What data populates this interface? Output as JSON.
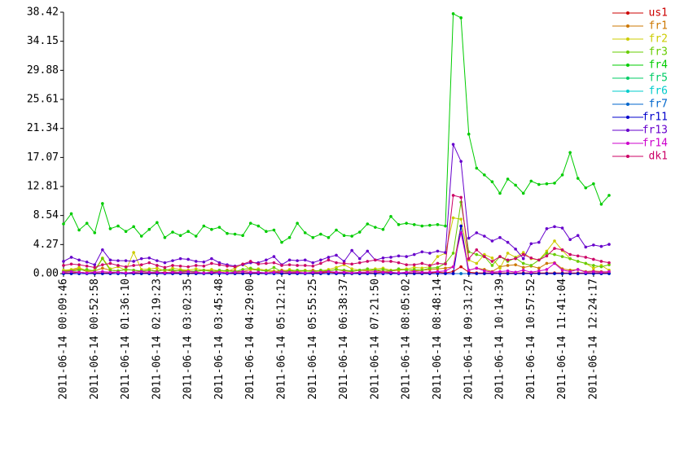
{
  "chart_data": {
    "type": "line",
    "x": [
      "2011-06-14 00:09:46",
      "2011-06-14 00:20:34",
      "2011-06-14 00:31:22",
      "2011-06-14 00:42:10",
      "2011-06-14 00:52:58",
      "2011-06-14 01:03:46",
      "2011-06-14 01:14:34",
      "2011-06-14 01:25:22",
      "2011-06-14 01:36:10",
      "2011-06-14 01:46:58",
      "2011-06-14 01:57:46",
      "2011-06-14 02:08:34",
      "2011-06-14 02:19:22",
      "2011-06-14 02:30:10",
      "2011-06-14 02:40:58",
      "2011-06-14 02:51:46",
      "2011-06-14 03:02:34",
      "2011-06-14 03:13:22",
      "2011-06-14 03:24:10",
      "2011-06-14 03:34:58",
      "2011-06-14 03:45:46",
      "2011-06-14 03:56:34",
      "2011-06-14 04:07:22",
      "2011-06-14 04:18:10",
      "2011-06-14 04:28:58",
      "2011-06-14 04:39:46",
      "2011-06-14 04:50:34",
      "2011-06-14 05:01:22",
      "2011-06-14 05:12:10",
      "2011-06-14 05:22:58",
      "2011-06-14 05:33:46",
      "2011-06-14 05:44:34",
      "2011-06-14 05:55:22",
      "2011-06-14 06:06:10",
      "2011-06-14 06:16:58",
      "2011-06-14 06:27:46",
      "2011-06-14 06:38:34",
      "2011-06-14 06:49:22",
      "2011-06-14 07:00:10",
      "2011-06-14 07:10:58",
      "2011-06-14 07:21:46",
      "2011-06-14 07:32:34",
      "2011-06-14 07:43:22",
      "2011-06-14 07:54:10",
      "2011-06-14 08:04:58",
      "2011-06-14 08:15:46",
      "2011-06-14 08:26:34",
      "2011-06-14 08:37:22",
      "2011-06-14 08:48:10",
      "2011-06-14 08:58:58",
      "2011-06-14 09:09:46",
      "2011-06-14 09:20:34",
      "2011-06-14 09:31:22",
      "2011-06-14 09:42:10",
      "2011-06-14 09:52:58",
      "2011-06-14 10:03:46",
      "2011-06-14 10:14:34",
      "2011-06-14 10:25:22",
      "2011-06-14 10:36:10",
      "2011-06-14 10:46:58",
      "2011-06-14 10:57:46",
      "2011-06-14 11:08:34",
      "2011-06-14 11:19:22",
      "2011-06-14 11:30:10",
      "2011-06-14 11:40:58",
      "2011-06-14 11:51:46",
      "2011-06-14 12:02:34",
      "2011-06-14 12:13:22",
      "2011-06-14 12:24:10",
      "2011-06-14 12:34:58",
      "2011-06-14 12:45:46"
    ],
    "xlim": [
      "2011-06-14 00:09:46",
      "2011-06-14 12:45:46"
    ],
    "xticks": [
      "2011-06-14 00:09:46",
      "2011-06-14 00:52:58",
      "2011-06-14 01:36:10",
      "2011-06-14 02:19:23",
      "2011-06-14 03:02:35",
      "2011-06-14 03:45:48",
      "2011-06-14 04:29:00",
      "2011-06-14 05:12:12",
      "2011-06-14 05:55:25",
      "2011-06-14 06:38:37",
      "2011-06-14 07:21:50",
      "2011-06-14 08:05:02",
      "2011-06-14 08:48:14",
      "2011-06-14 09:31:27",
      "2011-06-14 10:14:39",
      "2011-06-14 10:57:52",
      "2011-06-14 11:41:04",
      "2011-06-14 12:24:17"
    ],
    "ylim": [
      0,
      38.42
    ],
    "yticks": [
      {
        "value": 0,
        "label": "0.00"
      },
      4.27,
      8.54,
      12.81,
      17.07,
      21.34,
      25.61,
      29.88,
      34.15,
      38.42
    ],
    "legend": "right",
    "series": [
      {
        "name": "us1",
        "color": "#cc0000",
        "values": [
          0.1,
          0.1,
          0.2,
          0.1,
          0.1,
          0.1,
          0.1,
          0.2,
          0.1,
          0.1,
          0.1,
          0.1,
          0.1,
          0.2,
          0.1,
          0.1,
          0.1,
          0.1,
          0.1,
          0.1,
          0.2,
          0.1,
          0.1,
          0.1,
          0.1,
          0.1,
          0.1,
          0.2,
          0.1,
          0.1,
          0.1,
          0.1,
          0.1,
          0.1,
          0.2,
          0.1,
          0.1,
          0.1,
          0.1,
          0.1,
          0.1,
          0.2,
          0.1,
          0.1,
          0.1,
          0.1,
          0.1,
          0.1,
          0.2,
          0.1,
          0.3,
          1.0,
          0.2,
          0.1,
          0.1,
          0.1,
          0.1,
          0.1,
          0.1,
          0.1,
          0.1,
          0.1,
          0.1,
          0.1,
          0.1,
          0.1,
          0.1,
          0.1,
          0.1,
          0.1,
          0.1
        ]
      },
      {
        "name": "fr1",
        "color": "#cc7700",
        "values": [
          0.4,
          0.5,
          0.7,
          0.3,
          0.4,
          0.8,
          0.5,
          0.4,
          0.6,
          0.5,
          0.3,
          0.5,
          0.4,
          0.6,
          0.3,
          0.5,
          0.4,
          0.3,
          0.5,
          0.4,
          0.3,
          0.5,
          0.4,
          0.3,
          0.6,
          0.5,
          0.4,
          0.3,
          0.5,
          0.4,
          0.3,
          0.4,
          0.5,
          0.3,
          0.4,
          0.6,
          0.4,
          0.3,
          0.5,
          0.4,
          0.5,
          0.3,
          0.4,
          0.5,
          0.6,
          0.4,
          0.5,
          0.6,
          0.7,
          0.8,
          1.0,
          7.0,
          0.5,
          0.8,
          0.6,
          0.3,
          1.0,
          1.2,
          1.3,
          0.9,
          1.1,
          0.8,
          1.5,
          1.6,
          0.7,
          0.5,
          0.6,
          0.3,
          0.4,
          0.3,
          0.2
        ]
      },
      {
        "name": "fr2",
        "color": "#cccc00",
        "values": [
          0.5,
          0.6,
          0.9,
          0.4,
          0.5,
          2.3,
          0.7,
          1.0,
          0.5,
          3.1,
          0.6,
          0.7,
          0.8,
          0.4,
          0.8,
          0.6,
          0.5,
          0.7,
          0.5,
          0.6,
          0.4,
          0.3,
          0.8,
          1.4,
          0.6,
          0.7,
          0.5,
          0.4,
          0.3,
          0.6,
          0.4,
          0.5,
          0.3,
          0.4,
          0.6,
          0.9,
          1.3,
          0.7,
          0.5,
          0.6,
          0.7,
          0.8,
          0.5,
          0.6,
          0.7,
          0.9,
          0.8,
          1.0,
          2.5,
          3.0,
          8.2,
          8.0,
          2.0,
          1.5,
          2.8,
          2.3,
          0.8,
          3.0,
          2.4,
          3.1,
          2.2,
          2.0,
          3.3,
          4.8,
          3.4,
          2.2,
          1.8,
          1.5,
          0.8,
          1.2,
          0.5
        ]
      },
      {
        "name": "fr3",
        "color": "#66cc00",
        "values": [
          0.3,
          0.4,
          0.5,
          0.6,
          0.4,
          2.2,
          0.5,
          0.4,
          0.6,
          0.5,
          0.4,
          0.5,
          0.3,
          0.6,
          0.5,
          0.4,
          0.3,
          0.4,
          0.5,
          0.3,
          0.5,
          0.4,
          0.3,
          0.6,
          0.8,
          0.5,
          0.4,
          0.9,
          0.3,
          0.4,
          0.5,
          0.4,
          0.3,
          0.5,
          0.4,
          0.6,
          0.5,
          0.4,
          0.5,
          0.7,
          0.5,
          0.6,
          0.4,
          0.7,
          0.5,
          0.6,
          0.5,
          0.8,
          0.9,
          1.5,
          3.0,
          10.5,
          3.2,
          2.8,
          2.5,
          1.2,
          2.5,
          1.8,
          2.3,
          1.5,
          1.2,
          2.0,
          3.0,
          2.8,
          2.5,
          2.2,
          1.8,
          1.5,
          1.2,
          1.0,
          1.3
        ]
      },
      {
        "name": "fr4",
        "color": "#00cc00",
        "values": [
          7.3,
          8.8,
          6.4,
          7.4,
          6.0,
          10.3,
          6.6,
          7.0,
          6.2,
          6.9,
          5.5,
          6.5,
          7.5,
          5.3,
          6.1,
          5.6,
          6.2,
          5.5,
          7.0,
          6.5,
          6.8,
          5.9,
          5.8,
          5.6,
          7.4,
          7.0,
          6.2,
          6.4,
          4.6,
          5.3,
          7.4,
          6.0,
          5.3,
          5.8,
          5.3,
          6.4,
          5.6,
          5.5,
          6.1,
          7.3,
          6.8,
          6.5,
          8.4,
          7.2,
          7.4,
          7.2,
          7.0,
          7.1,
          7.2,
          7.0,
          38.2,
          37.6,
          20.5,
          15.5,
          14.5,
          13.5,
          11.8,
          13.9,
          13.0,
          11.8,
          13.6,
          13.1,
          13.2,
          13.3,
          14.5,
          17.8,
          14.0,
          12.6,
          13.2,
          10.2,
          11.5
        ]
      },
      {
        "name": "fr5",
        "color": "#00cc66",
        "values": [
          0,
          0,
          0,
          0,
          0,
          0,
          0,
          0,
          0,
          0,
          0,
          0,
          0,
          0,
          0,
          0,
          0,
          0,
          0,
          0,
          0,
          0,
          0,
          0,
          0,
          0,
          0,
          0,
          0,
          0,
          0,
          0,
          0,
          0,
          0,
          0,
          0,
          0,
          0,
          0,
          0,
          0,
          0,
          0,
          0,
          0,
          0,
          0,
          0,
          0,
          0,
          0,
          0,
          0,
          0,
          0,
          0,
          0,
          0,
          0,
          0,
          0,
          0,
          0,
          0,
          0,
          0,
          0,
          0,
          0,
          0
        ]
      },
      {
        "name": "fr6",
        "color": "#00cccc",
        "values": [
          0,
          0,
          0,
          0,
          0,
          0,
          0,
          0,
          0,
          0,
          0,
          0,
          0,
          0,
          0,
          0,
          0,
          0,
          0,
          0,
          0,
          0,
          0,
          0,
          0,
          0,
          0,
          0,
          0,
          0,
          0,
          0,
          0,
          0,
          0,
          0,
          0,
          0,
          0,
          0,
          0,
          0,
          0,
          0,
          0,
          0,
          0,
          0,
          0,
          0,
          0,
          0,
          0,
          0,
          0,
          0,
          0,
          0,
          0,
          0,
          0,
          0,
          0,
          0,
          0,
          0,
          0,
          0,
          0,
          0,
          0
        ]
      },
      {
        "name": "fr7",
        "color": "#0066cc",
        "values": [
          0,
          0,
          0,
          0,
          0,
          0,
          0,
          0,
          0,
          0,
          0,
          0,
          0,
          0,
          0,
          0,
          0,
          0,
          0,
          0,
          0,
          0,
          0,
          0,
          0,
          0,
          0,
          0,
          0,
          0,
          0,
          0,
          0,
          0,
          0,
          0,
          0,
          0,
          0,
          0,
          0,
          0,
          0,
          0,
          0,
          0,
          0,
          0,
          0,
          0,
          0,
          0,
          0,
          0,
          0,
          0,
          0,
          0,
          0,
          0,
          0,
          0,
          0,
          0,
          0,
          0,
          0,
          0,
          0,
          0,
          0
        ]
      },
      {
        "name": "fr11",
        "color": "#0000cc",
        "values": [
          0,
          0,
          0,
          0,
          0,
          0,
          0,
          0,
          0,
          0,
          0,
          0,
          0,
          0,
          0,
          0,
          0,
          0,
          0,
          0,
          0,
          0,
          0,
          0,
          0,
          0,
          0,
          0,
          0,
          0,
          0,
          0,
          0,
          0,
          0,
          0,
          0,
          0,
          0,
          0,
          0,
          0,
          0,
          0,
          0,
          0,
          0,
          0,
          0,
          0,
          0,
          7.0,
          0,
          0,
          0,
          0,
          0,
          0,
          0,
          0,
          0,
          0,
          0,
          0,
          0,
          0,
          0,
          0,
          0,
          0,
          0
        ]
      },
      {
        "name": "fr13",
        "color": "#6600cc",
        "values": [
          1.8,
          2.4,
          2.0,
          1.7,
          1.3,
          3.5,
          2.0,
          1.9,
          1.9,
          1.8,
          2.2,
          2.3,
          1.9,
          1.6,
          1.9,
          2.2,
          2.1,
          1.8,
          1.7,
          2.2,
          1.6,
          1.3,
          1.1,
          1.3,
          1.6,
          1.6,
          2.0,
          2.5,
          1.3,
          2.0,
          1.9,
          2.0,
          1.6,
          2.0,
          2.4,
          2.7,
          1.8,
          3.4,
          2.2,
          3.3,
          2.0,
          2.3,
          2.4,
          2.6,
          2.5,
          2.8,
          3.2,
          3.0,
          3.3,
          3.1,
          19.0,
          16.5,
          5.2,
          6.0,
          5.5,
          4.8,
          5.3,
          4.6,
          3.6,
          2.2,
          4.4,
          4.6,
          6.6,
          6.9,
          6.7,
          5.0,
          5.6,
          3.9,
          4.2,
          4.0,
          4.3
        ]
      },
      {
        "name": "fr14",
        "color": "#cc00cc",
        "values": [
          0.2,
          0.3,
          0.2,
          0.1,
          0.2,
          0.3,
          0.2,
          0.2,
          0.1,
          0.2,
          0.3,
          0.2,
          0.2,
          0.1,
          0.2,
          0.2,
          0.3,
          0.2,
          0.1,
          0.2,
          0.2,
          0.1,
          0.2,
          0.3,
          0.2,
          0.2,
          0.1,
          0.2,
          0.3,
          0.2,
          0.2,
          0.1,
          0.2,
          0.2,
          0.3,
          0.2,
          0.2,
          0.1,
          0.2,
          0.2,
          0.3,
          0.2,
          0.2,
          0.1,
          0.2,
          0.3,
          0.2,
          0.2,
          0.3,
          0.4,
          1.0,
          6.0,
          0.5,
          0.8,
          0.4,
          0.2,
          0.3,
          0.4,
          0.2,
          0.5,
          0.2,
          0.4,
          0.6,
          1.5,
          0.5,
          0.3,
          0.6,
          0.2,
          0.3,
          0.2,
          0.3
        ]
      },
      {
        "name": "dk1",
        "color": "#cc0066",
        "values": [
          1.2,
          1.4,
          1.3,
          1.1,
          0.9,
          1.3,
          1.5,
          1.2,
          1.0,
          1.2,
          1.3,
          1.6,
          1.2,
          0.9,
          1.2,
          1.1,
          1.0,
          1.2,
          1.1,
          1.5,
          1.3,
          1.1,
          1.0,
          1.4,
          1.8,
          1.4,
          1.5,
          1.6,
          1.2,
          1.3,
          1.2,
          1.2,
          1.1,
          1.5,
          2.0,
          1.6,
          1.5,
          1.4,
          1.6,
          1.8,
          2.0,
          1.8,
          1.8,
          1.6,
          1.3,
          1.3,
          1.5,
          1.2,
          1.5,
          1.4,
          11.5,
          11.2,
          2.2,
          3.5,
          2.5,
          1.8,
          2.5,
          2.0,
          2.2,
          2.8,
          2.3,
          2.0,
          2.6,
          3.7,
          3.5,
          2.8,
          2.6,
          2.4,
          2.1,
          1.8,
          1.6
        ]
      }
    ]
  }
}
